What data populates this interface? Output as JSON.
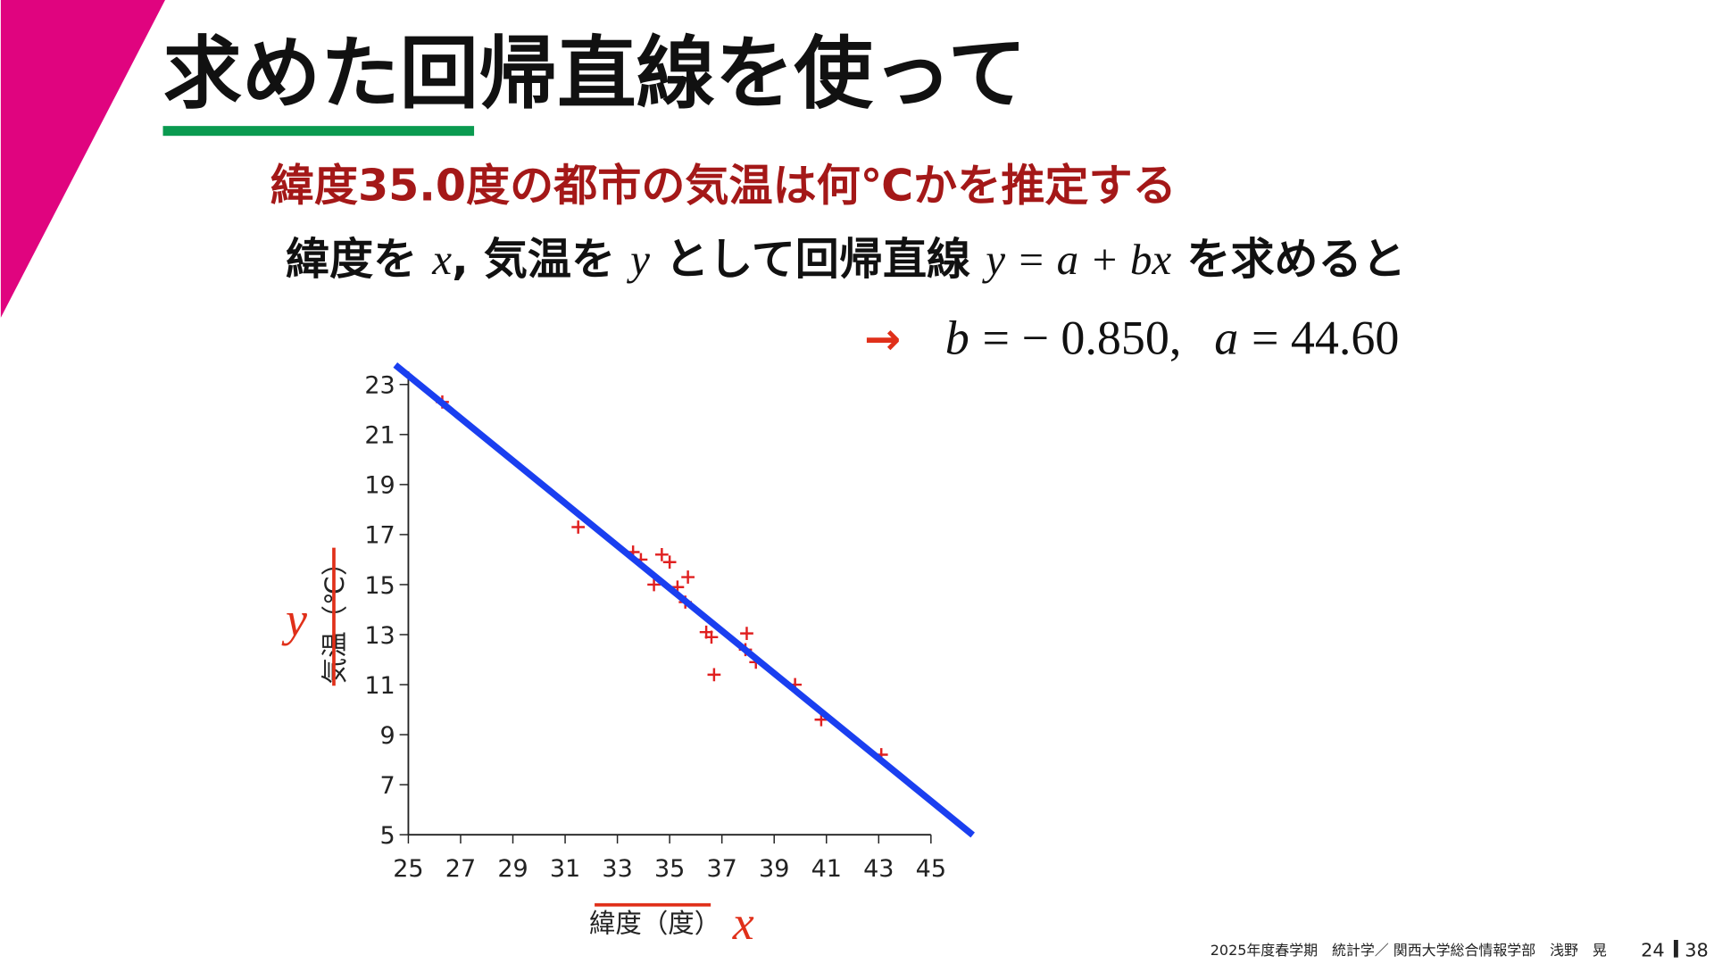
{
  "title": "求めた回帰直線を使って",
  "subtitle": "緯度35.0度の都市の気温は何℃かを推定する",
  "statement": [
    "緯度を ",
    "x",
    ", 気温を ",
    "y",
    " として回帰直線 ",
    "y = a + bx",
    " を求めると"
  ],
  "result": {
    "arrow": "→",
    "b": "b",
    "b_value": "= − 0.850,",
    "a": "a",
    "a_value": "= 44.60"
  },
  "footer": {
    "course": "2025年度春学期　統計学／ 関西大学総合情報学部　浅野　晃",
    "page": "24",
    "total": "38"
  },
  "chart_data": {
    "type": "scatter",
    "x_label": "緯度（度）",
    "y_label": "気温（℃）",
    "annotations": {
      "x": "x",
      "y": "y"
    },
    "xlim": [
      25,
      45
    ],
    "ylim": [
      5,
      23
    ],
    "xticks": [
      25,
      27,
      29,
      31,
      33,
      35,
      37,
      39,
      41,
      43,
      45
    ],
    "yticks": [
      5,
      7,
      9,
      11,
      13,
      15,
      17,
      19,
      21,
      23
    ],
    "series": [
      {
        "color": "#e02020",
        "x": [
          26.3,
          31.5,
          33.6,
          33.9,
          34.7,
          35.0,
          34.4,
          35.3,
          35.7,
          35.6,
          36.4,
          36.6,
          36.7,
          37.95,
          37.9,
          38.3,
          39.8,
          40.8,
          43.1
        ],
        "values": [
          22.3,
          17.3,
          16.3,
          16.0,
          16.2,
          15.9,
          15.0,
          14.9,
          15.3,
          14.3,
          13.1,
          12.9,
          11.4,
          13.05,
          12.4,
          11.9,
          11.0,
          9.6,
          8.2
        ]
      },
      {
        "color": "#1a3ff0",
        "type": "line",
        "x": [
          24.5,
          46.6
        ],
        "values": [
          23.78,
          4.99
        ]
      }
    ]
  }
}
